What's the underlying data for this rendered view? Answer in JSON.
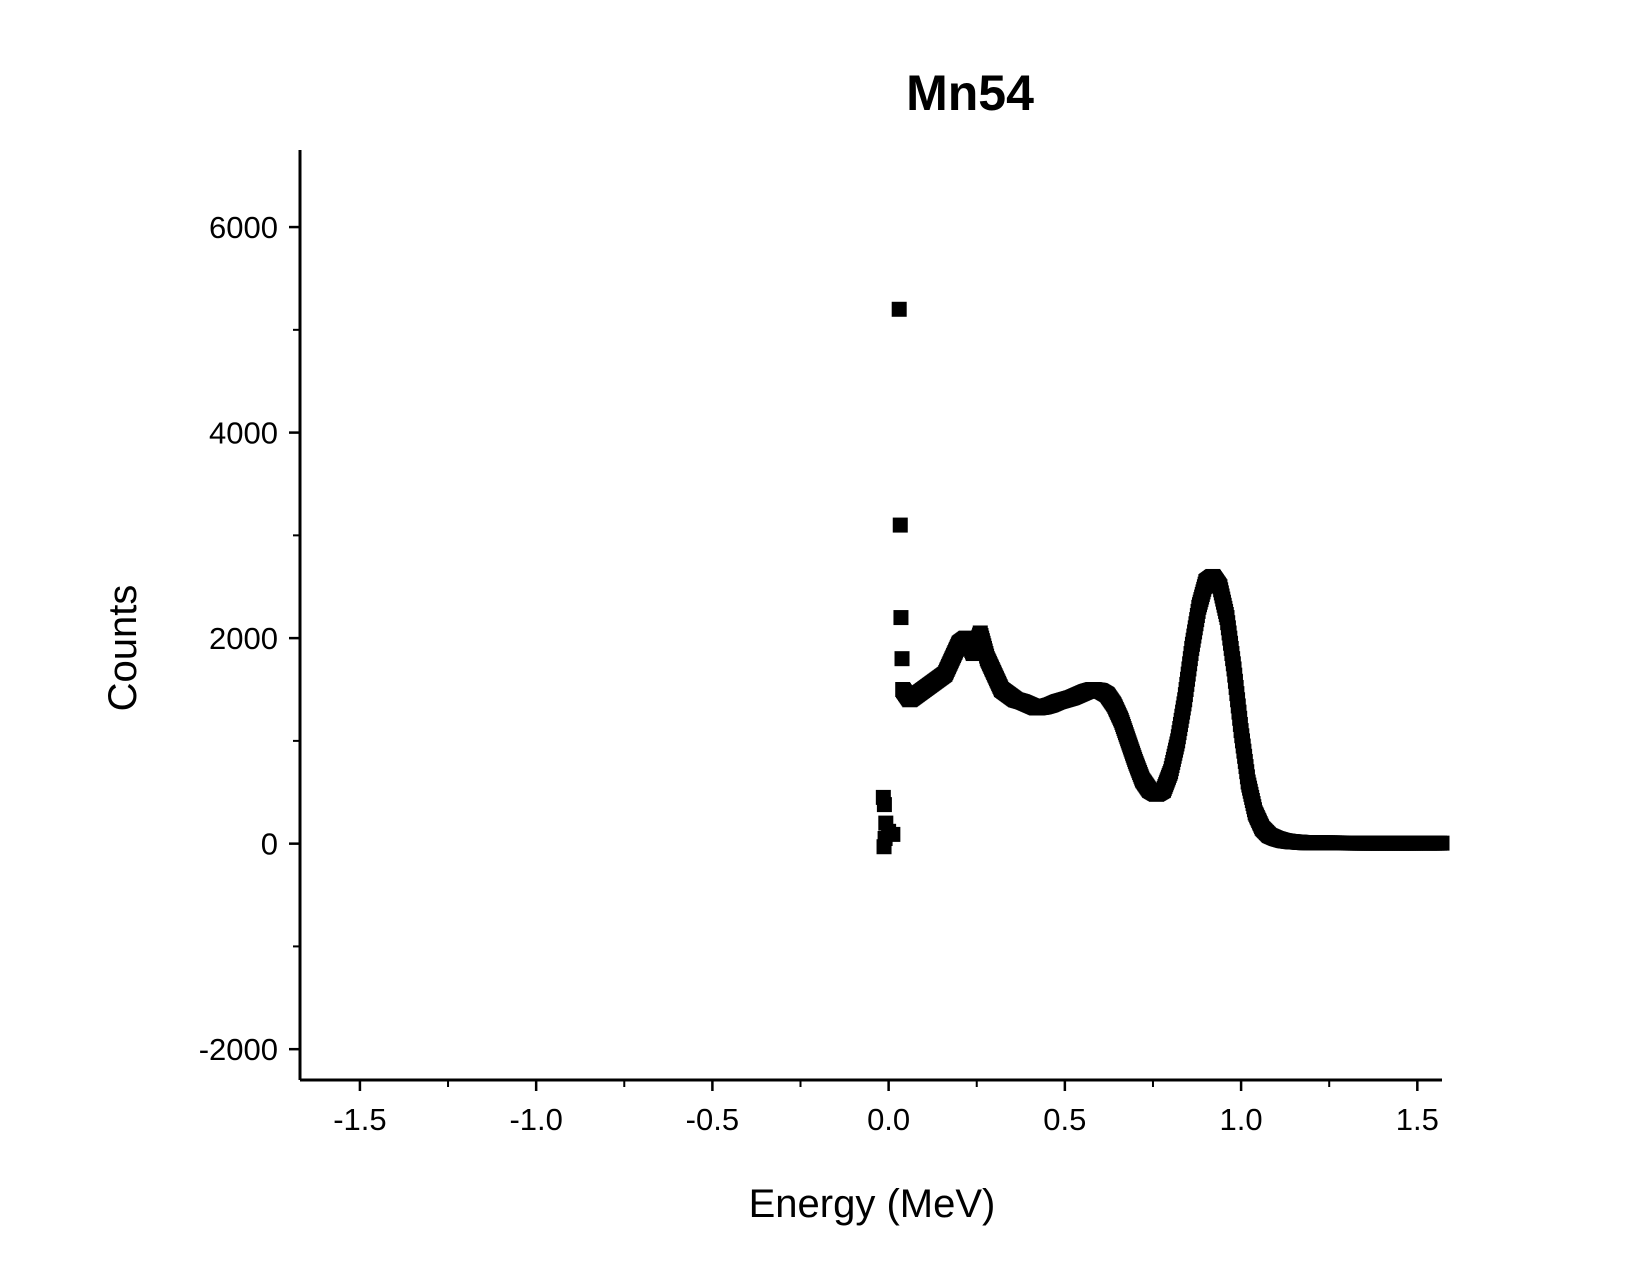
{
  "chart_data": {
    "type": "scatter",
    "title": "Mn54",
    "xlabel": "Energy (MeV)",
    "ylabel": "Counts",
    "xlim": [
      -1.67,
      1.57
    ],
    "ylim": [
      -2300,
      6750
    ],
    "x_ticks": [
      -1.5,
      -1.0,
      -0.5,
      0.0,
      0.5,
      1.0,
      1.5
    ],
    "x_tick_labels": [
      "-1.5",
      "-1.0",
      "-0.5",
      "0.0",
      "0.5",
      "1.0",
      "1.5"
    ],
    "y_ticks": [
      -2000,
      0,
      2000,
      4000,
      6000
    ],
    "y_tick_labels": [
      "-2000",
      "0",
      "2000",
      "4000",
      "6000"
    ],
    "grid": false,
    "marker": "square",
    "marker_color": "#000000",
    "series": [
      {
        "isolated_points": [
          {
            "x": 0.03,
            "y": 5200
          },
          {
            "x": 0.033,
            "y": 3100
          },
          {
            "x": 0.035,
            "y": 2200
          },
          {
            "x": 0.038,
            "y": 1800
          },
          {
            "x": -0.015,
            "y": 450
          },
          {
            "x": -0.012,
            "y": 380
          },
          {
            "x": -0.008,
            "y": 200
          },
          {
            "x": -0.01,
            "y": 50
          },
          {
            "x": -0.013,
            "y": -30
          },
          {
            "x": 0.0,
            "y": 120
          },
          {
            "x": 0.012,
            "y": 90
          }
        ],
        "curve": {
          "x": [
            0.04,
            0.06,
            0.08,
            0.1,
            0.12,
            0.14,
            0.16,
            0.18,
            0.2,
            0.22,
            0.24,
            0.26,
            0.28,
            0.3,
            0.32,
            0.34,
            0.36,
            0.38,
            0.4,
            0.42,
            0.44,
            0.46,
            0.48,
            0.5,
            0.52,
            0.54,
            0.56,
            0.58,
            0.6,
            0.62,
            0.64,
            0.66,
            0.68,
            0.7,
            0.72,
            0.74,
            0.76,
            0.78,
            0.8,
            0.82,
            0.84,
            0.86,
            0.88,
            0.9,
            0.92,
            0.94,
            0.96,
            0.98,
            1.0,
            1.02,
            1.04,
            1.06,
            1.08,
            1.1,
            1.12,
            1.14,
            1.16,
            1.18,
            1.2,
            1.25,
            1.3,
            1.35,
            1.4,
            1.45,
            1.5,
            1.57
          ],
          "y": [
            1500,
            1400,
            1450,
            1500,
            1550,
            1600,
            1650,
            1800,
            1950,
            2000,
            1850,
            2050,
            1800,
            1650,
            1500,
            1450,
            1400,
            1380,
            1350,
            1320,
            1330,
            1350,
            1380,
            1400,
            1420,
            1450,
            1480,
            1500,
            1490,
            1450,
            1350,
            1200,
            1000,
            800,
            620,
            520,
            480,
            520,
            700,
            1000,
            1400,
            1900,
            2300,
            2550,
            2600,
            2500,
            2200,
            1700,
            1100,
            600,
            300,
            150,
            80,
            50,
            30,
            20,
            15,
            10,
            10,
            8,
            6,
            5,
            5,
            5,
            5,
            5
          ]
        }
      }
    ]
  }
}
